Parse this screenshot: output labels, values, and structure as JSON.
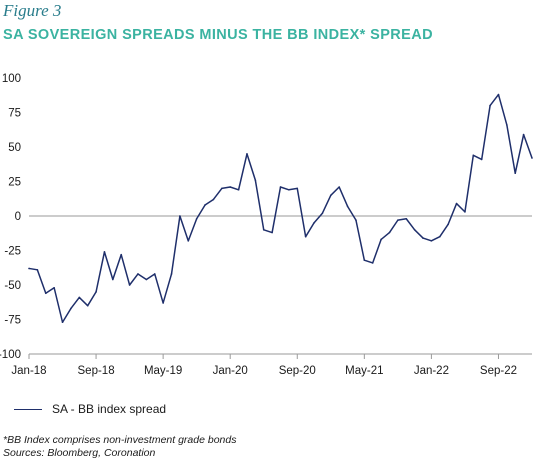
{
  "figure_label": "Figure 3",
  "title": "SA SOVEREIGN SPREADS MINUS THE BB INDEX* SPREAD",
  "footnote": "*BB Index comprises non-investment grade bonds",
  "sources": "Sources: Bloomberg, Coronation",
  "colors": {
    "series": "#1f2f6b",
    "title": "#3bb3a1",
    "figure_label": "#2a7d8c"
  },
  "chart_data": {
    "type": "line",
    "ylim": [
      -100,
      100
    ],
    "yticks": [
      100,
      75,
      50,
      25,
      0,
      -25,
      -50,
      -75,
      -100
    ],
    "xtick_labels": [
      "Jan-18",
      "Sep-18",
      "May-19",
      "Jan-20",
      "Sep-20",
      "May-21",
      "Jan-22",
      "Sep-22"
    ],
    "legend": "bottom-left",
    "grid": false,
    "series": [
      {
        "name": "SA - BB index spread",
        "values": [
          -38,
          -39,
          -56,
          -52,
          -77,
          -67,
          -59,
          -65,
          -55,
          -26,
          -46,
          -28,
          -50,
          -42,
          -46,
          -42,
          -63,
          -42,
          0,
          -18,
          -2,
          8,
          12,
          20,
          21,
          19,
          45,
          26,
          -10,
          -12,
          21,
          19,
          20,
          -15,
          -5,
          2,
          15,
          21,
          7,
          -3,
          -32,
          -34,
          -17,
          -12,
          -3,
          -2,
          -10,
          -16,
          -18,
          -15,
          -6,
          9,
          3,
          44,
          41,
          80,
          88,
          66,
          31,
          59,
          42
        ]
      }
    ]
  }
}
